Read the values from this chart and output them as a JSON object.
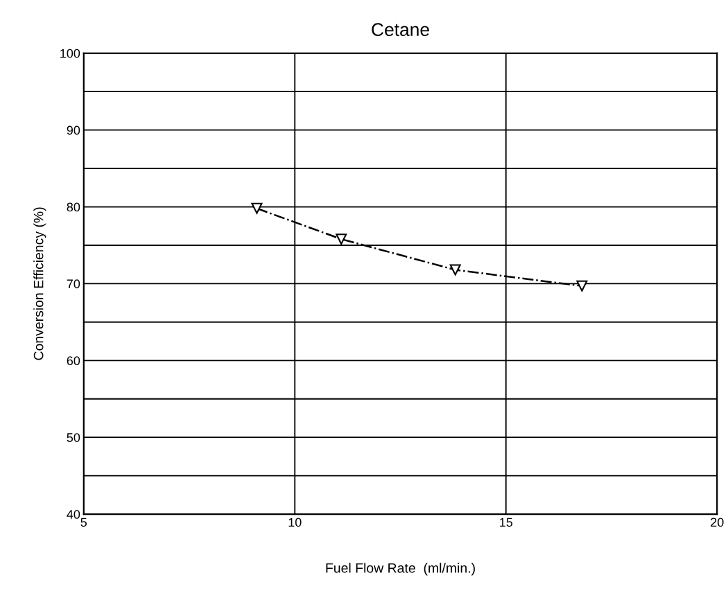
{
  "chart_data": {
    "type": "line",
    "title": "Cetane",
    "xlabel": "Fuel Flow Rate  (ml/min.)",
    "ylabel": "Conversion Efficiency (%)",
    "x": [
      9.1,
      11.1,
      13.8,
      16.8
    ],
    "series": [
      {
        "color": "#000000",
        "values": [
          79.8,
          75.8,
          71.8,
          69.7
        ]
      }
    ],
    "xlim": [
      5,
      20
    ],
    "xticks": [
      5,
      10,
      15,
      20
    ],
    "ylim": [
      40,
      100
    ],
    "yticks": [
      40,
      {
        "value": 45,
        "label": null
      },
      50,
      {
        "value": 55,
        "label": null
      },
      60,
      {
        "value": 65,
        "label": null
      },
      70,
      {
        "value": 75,
        "label": null
      },
      80,
      {
        "value": 85,
        "label": null
      },
      90,
      {
        "value": 95,
        "label": null
      },
      100
    ],
    "grid": true,
    "marker": "triangle",
    "line_style": "dashdot"
  }
}
